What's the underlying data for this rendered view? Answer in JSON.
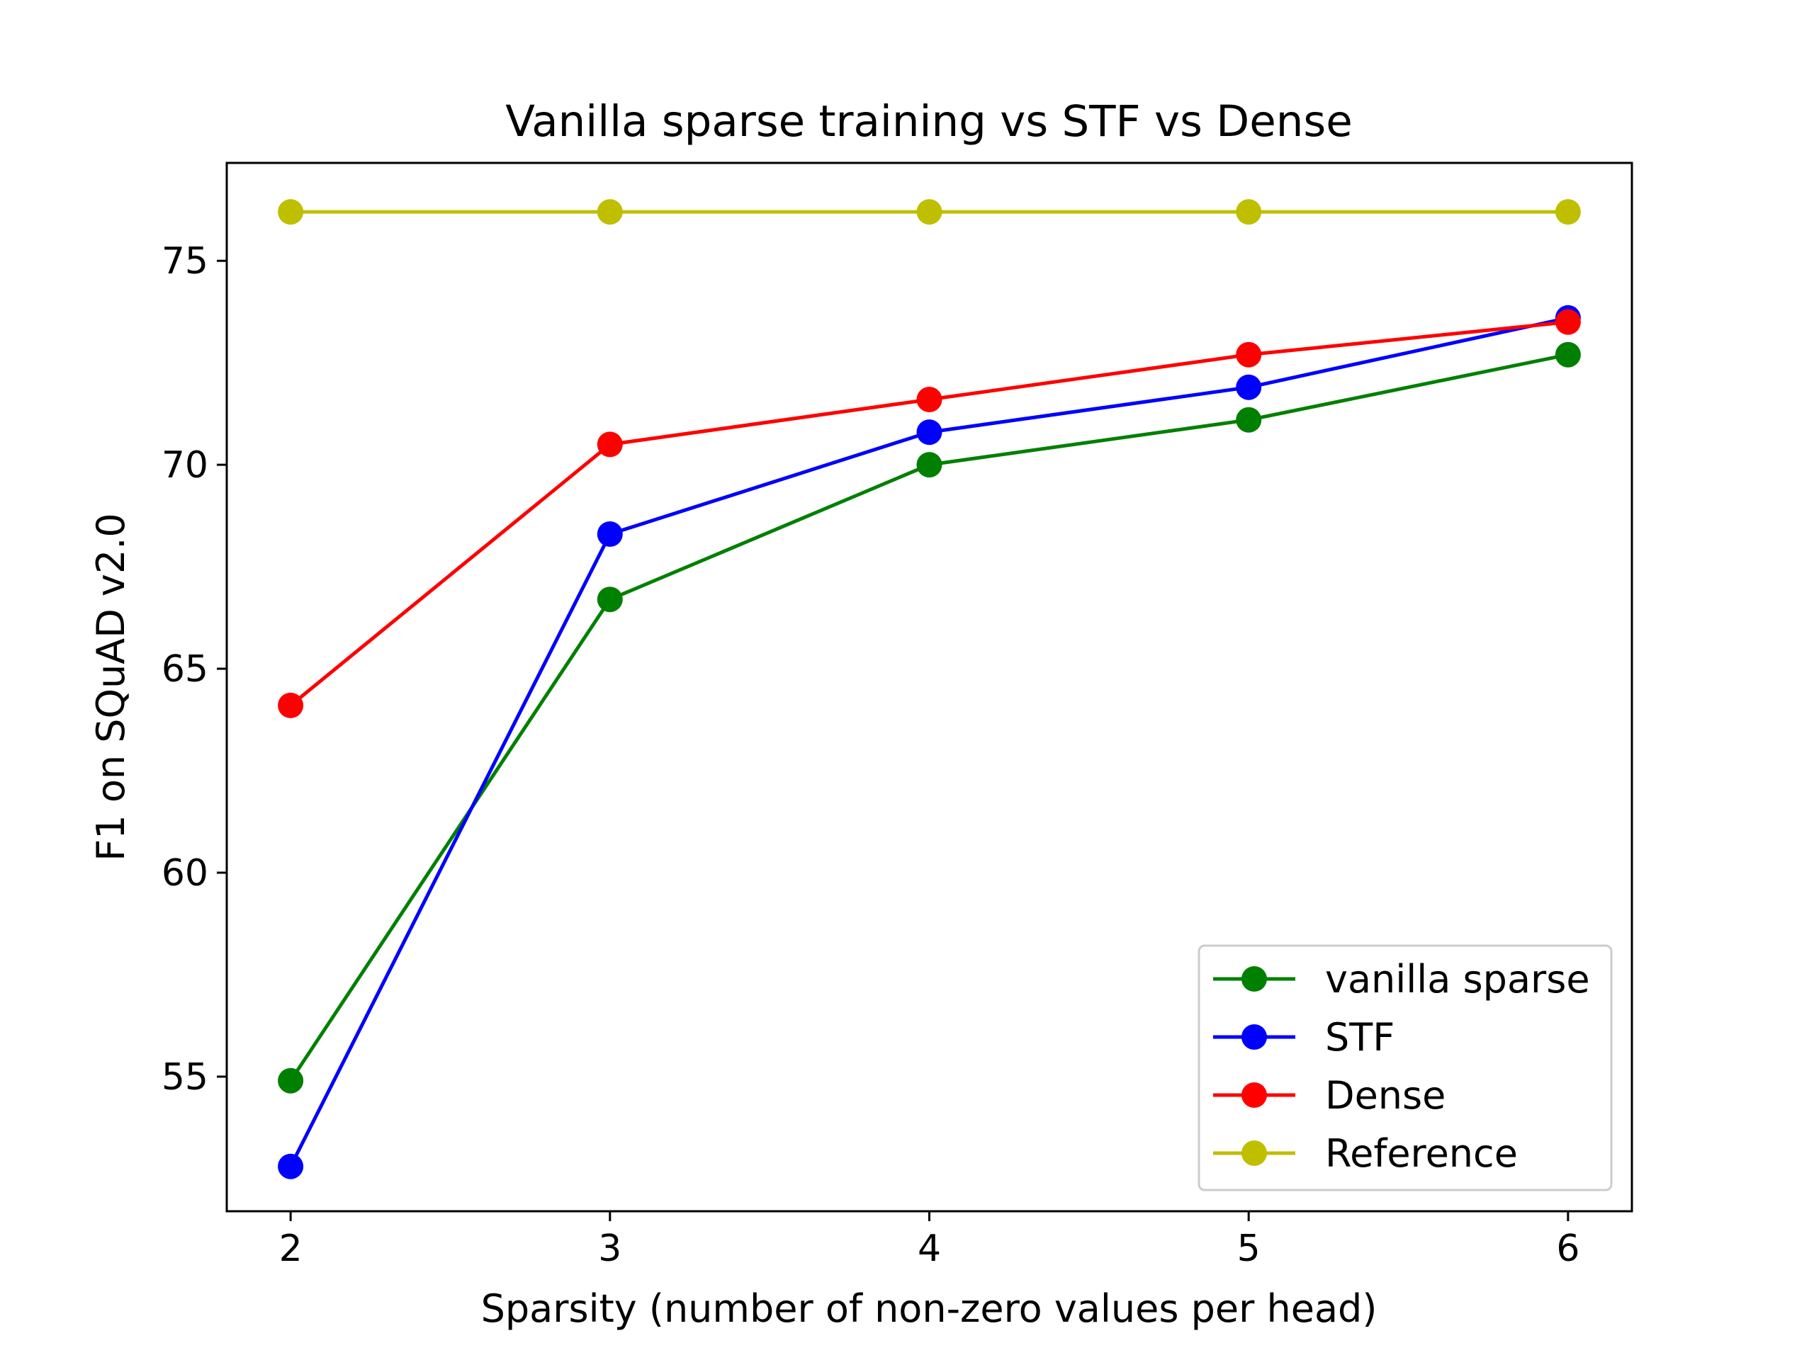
{
  "chart_data": {
    "type": "line",
    "title": "Vanilla sparse training vs STF vs Dense",
    "xlabel": "Sparsity (number of non-zero values per head)",
    "ylabel": "F1 on SQuAD v2.0",
    "x": [
      2,
      3,
      4,
      5,
      6
    ],
    "xlim": [
      1.8,
      6.2
    ],
    "ylim": [
      51.7,
      77.4
    ],
    "xticks": [
      2,
      3,
      4,
      5,
      6
    ],
    "yticks": [
      55,
      60,
      65,
      70,
      75
    ],
    "grid": false,
    "legend_position": "lower-right",
    "series": [
      {
        "name": "vanilla sparse",
        "color": "#008000",
        "values": [
          54.9,
          66.7,
          70.0,
          71.1,
          72.7
        ]
      },
      {
        "name": "STF",
        "color": "#0000ff",
        "values": [
          52.8,
          68.3,
          70.8,
          71.9,
          73.6
        ]
      },
      {
        "name": "Dense",
        "color": "#ff0000",
        "values": [
          64.1,
          70.5,
          71.6,
          72.7,
          73.5
        ]
      },
      {
        "name": "Reference",
        "color": "#bfbf00",
        "values": [
          76.2,
          76.2,
          76.2,
          76.2,
          76.2
        ]
      }
    ]
  }
}
